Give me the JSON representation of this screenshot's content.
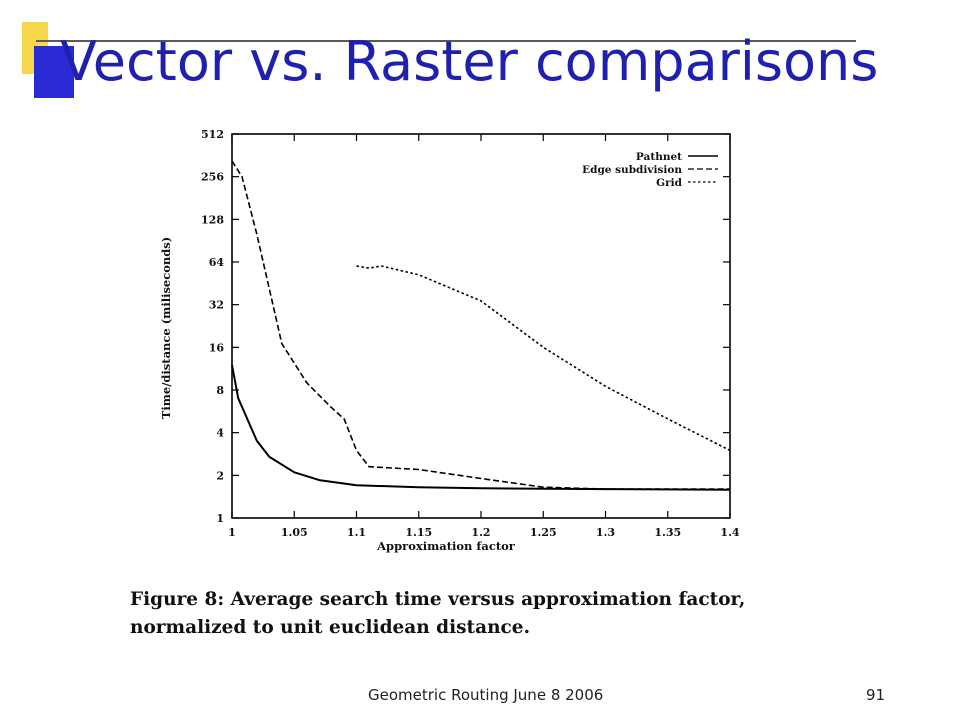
{
  "slide": {
    "title": "Vector vs. Raster comparisons",
    "caption_line1": "Figure 8: Average search time versus approximation factor,",
    "caption_line2": "normalized to unit euclidean distance.",
    "footer": "Geometric Routing  June 8 2006",
    "slide_number": "91",
    "colors": {
      "title": "#2020b0",
      "accent_blue": "#2b2bd6",
      "accent_yellow": "#f5d94a"
    }
  },
  "chart_data": {
    "type": "line",
    "xlabel": "Approximation factor",
    "ylabel": "Time/distance (miliseconds)",
    "xlim": [
      1,
      1.4
    ],
    "ylim": [
      1,
      512
    ],
    "yscale": "log2",
    "xticks": [
      "1",
      "1.05",
      "1.1",
      "1.15",
      "1.2",
      "1.25",
      "1.3",
      "1.35",
      "1.4"
    ],
    "yticks": [
      "1",
      "2",
      "4",
      "8",
      "16",
      "32",
      "64",
      "128",
      "256",
      "512"
    ],
    "legend_position": "top-right",
    "series": [
      {
        "name": "Pathnet",
        "style": "solid",
        "x": [
          1.0,
          1.005,
          1.02,
          1.03,
          1.05,
          1.07,
          1.1,
          1.15,
          1.2,
          1.3,
          1.4
        ],
        "y": [
          12,
          7,
          3.5,
          2.7,
          2.1,
          1.85,
          1.7,
          1.65,
          1.62,
          1.6,
          1.58
        ]
      },
      {
        "name": "Edge subdivision",
        "style": "dashed",
        "x": [
          1.0,
          1.008,
          1.02,
          1.04,
          1.06,
          1.08,
          1.09,
          1.1,
          1.11,
          1.15,
          1.2,
          1.25,
          1.3,
          1.4
        ],
        "y": [
          330,
          256,
          100,
          17,
          9,
          6,
          5,
          3,
          2.3,
          2.2,
          1.9,
          1.65,
          1.6,
          1.6
        ]
      },
      {
        "name": "Grid",
        "style": "dotted",
        "x": [
          1.1,
          1.11,
          1.12,
          1.15,
          1.2,
          1.25,
          1.3,
          1.35,
          1.4
        ],
        "y": [
          60,
          58,
          60,
          52,
          34,
          16,
          8.5,
          5,
          3
        ]
      }
    ]
  }
}
